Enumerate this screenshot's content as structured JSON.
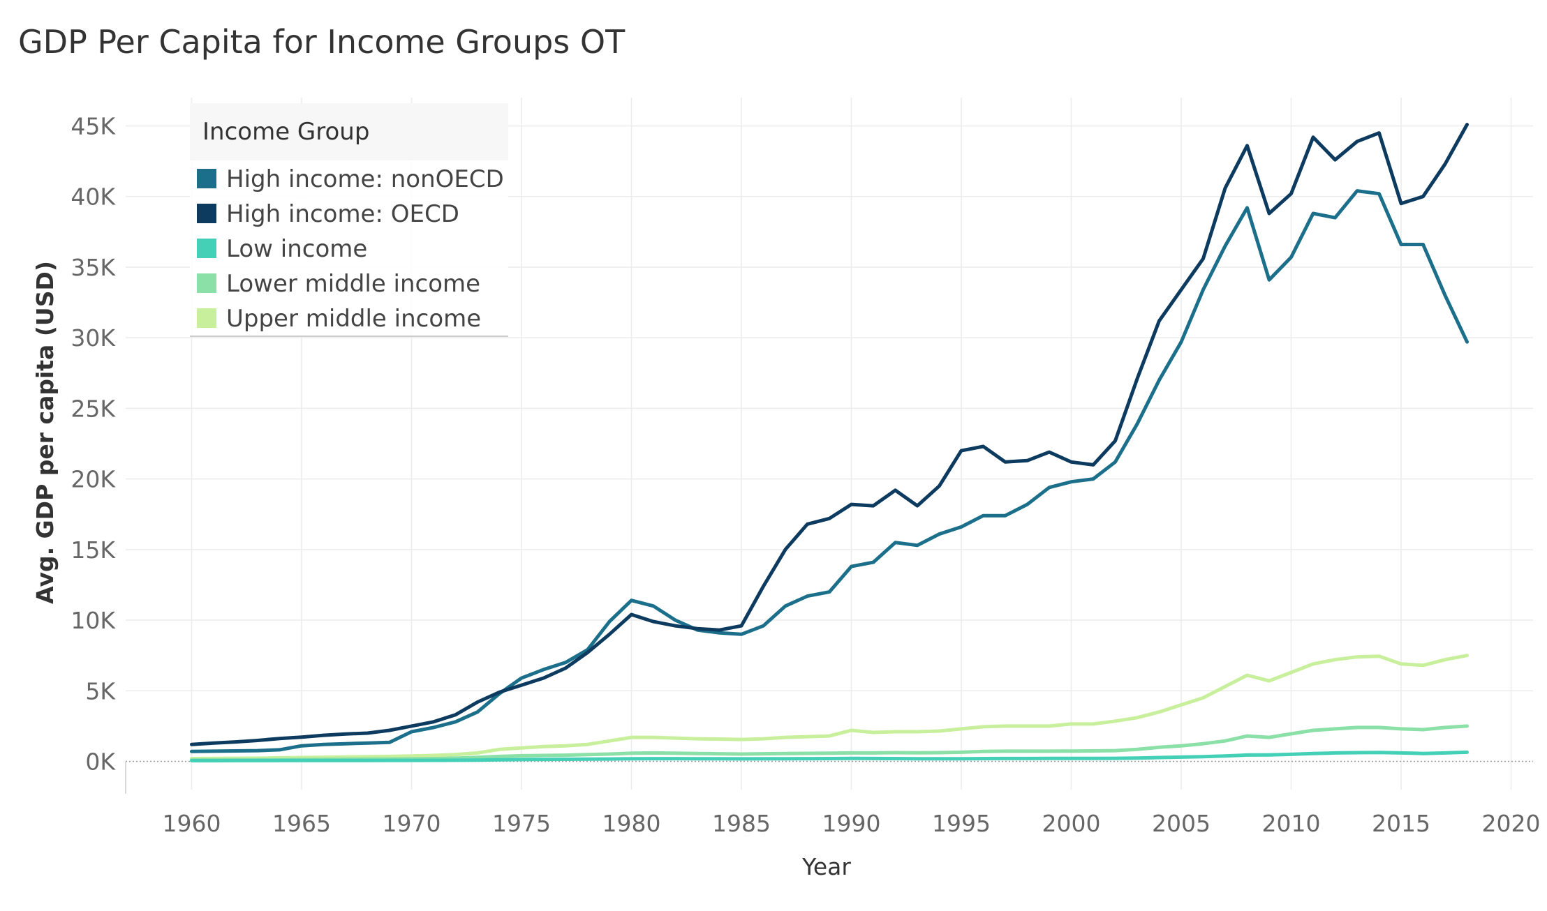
{
  "colors": {
    "High income: nonOECD": "#1b6f8a",
    "High income: OECD": "#0d3a5f",
    "Low income": "#44d0b6",
    "Lower middle income": "#8be0a8",
    "Upper middle income": "#c8f09c"
  },
  "chart_data": {
    "type": "line",
    "title": "GDP Per Capita for Income Groups OT",
    "xlabel": "Year",
    "ylabel": "Avg. GDP per capita (USD)",
    "xlim": [
      1957,
      2021
    ],
    "ylim": [
      -2000,
      47000
    ],
    "x_ticks": [
      1960,
      1965,
      1970,
      1975,
      1980,
      1985,
      1990,
      1995,
      2000,
      2005,
      2010,
      2015,
      2020
    ],
    "x_tick_labels": [
      "1960",
      "1965",
      "1970",
      "1975",
      "1980",
      "1985",
      "1990",
      "1995",
      "2000",
      "2005",
      "2010",
      "2015",
      "2020"
    ],
    "y_ticks": [
      0,
      5000,
      10000,
      15000,
      20000,
      25000,
      30000,
      35000,
      40000,
      45000
    ],
    "y_tick_labels": [
      "0K",
      "5K",
      "10K",
      "15K",
      "20K",
      "25K",
      "30K",
      "35K",
      "40K",
      "45K"
    ],
    "grid": true,
    "legend": {
      "title": "Income Group",
      "placement": "top-left",
      "items": [
        "High income: nonOECD",
        "High income: OECD",
        "Low income",
        "Lower middle income",
        "Upper middle income"
      ]
    },
    "x": [
      1960,
      1961,
      1962,
      1963,
      1964,
      1965,
      1966,
      1967,
      1968,
      1969,
      1970,
      1971,
      1972,
      1973,
      1974,
      1975,
      1976,
      1977,
      1978,
      1979,
      1980,
      1981,
      1982,
      1983,
      1984,
      1985,
      1986,
      1987,
      1988,
      1989,
      1990,
      1991,
      1992,
      1993,
      1994,
      1995,
      1996,
      1997,
      1998,
      1999,
      2000,
      2001,
      2002,
      2003,
      2004,
      2005,
      2006,
      2007,
      2008,
      2009,
      2010,
      2011,
      2012,
      2013,
      2014,
      2015,
      2016,
      2017,
      2018
    ],
    "series": [
      {
        "name": "Upper middle income",
        "values": [
          200,
          210,
          220,
          230,
          250,
          270,
          290,
          310,
          330,
          350,
          380,
          420,
          480,
          600,
          850,
          950,
          1050,
          1100,
          1200,
          1450,
          1700,
          1700,
          1650,
          1600,
          1580,
          1550,
          1600,
          1700,
          1750,
          1800,
          2200,
          2050,
          2100,
          2100,
          2150,
          2300,
          2450,
          2500,
          2500,
          2500,
          2650,
          2650,
          2850,
          3100,
          3500,
          4000,
          4500,
          5300,
          6100,
          5700,
          6300,
          6900,
          7200,
          7400,
          7450,
          6900,
          6800,
          7200,
          7500
        ]
      },
      {
        "name": "Lower middle income",
        "values": [
          100,
          105,
          110,
          115,
          120,
          130,
          140,
          150,
          160,
          170,
          180,
          200,
          230,
          280,
          350,
          400,
          420,
          440,
          480,
          520,
          580,
          600,
          580,
          560,
          540,
          520,
          540,
          560,
          570,
          580,
          600,
          600,
          620,
          610,
          620,
          650,
          700,
          720,
          720,
          720,
          730,
          740,
          760,
          850,
          1000,
          1100,
          1250,
          1450,
          1800,
          1700,
          1950,
          2200,
          2300,
          2400,
          2400,
          2300,
          2250,
          2400,
          2500
        ]
      },
      {
        "name": "Low income",
        "values": [
          50,
          52,
          54,
          56,
          58,
          60,
          62,
          64,
          66,
          68,
          70,
          75,
          80,
          90,
          110,
          130,
          140,
          150,
          160,
          170,
          190,
          195,
          195,
          190,
          185,
          180,
          185,
          190,
          195,
          200,
          210,
          205,
          200,
          190,
          185,
          190,
          200,
          205,
          205,
          210,
          215,
          215,
          220,
          240,
          270,
          300,
          330,
          380,
          450,
          460,
          500,
          560,
          600,
          620,
          630,
          600,
          560,
          600,
          650
        ]
      },
      {
        "name": "High income: nonOECD",
        "values": [
          700,
          720,
          740,
          760,
          820,
          1100,
          1200,
          1250,
          1300,
          1350,
          2100,
          2400,
          2800,
          3500,
          4800,
          5900,
          6500,
          7000,
          7900,
          9900,
          11400,
          11000,
          10000,
          9300,
          9100,
          9000,
          9600,
          11000,
          11700,
          12000,
          13800,
          14100,
          15500,
          15300,
          16100,
          16600,
          17400,
          17400,
          18200,
          19400,
          19800,
          20000,
          21200,
          23900,
          27000,
          29700,
          33400,
          36500,
          39200,
          34100,
          35700,
          38800,
          38500,
          40400,
          40200,
          36600,
          36600,
          33000,
          29700
        ]
      },
      {
        "name": "High income: OECD",
        "values": [
          1200,
          1300,
          1380,
          1480,
          1620,
          1720,
          1850,
          1940,
          2000,
          2200,
          2500,
          2800,
          3300,
          4200,
          4900,
          5400,
          5900,
          6600,
          7700,
          9000,
          10400,
          9900,
          9600,
          9400,
          9300,
          9600,
          12400,
          15000,
          16800,
          17200,
          18200,
          18100,
          19200,
          18100,
          19500,
          22000,
          22300,
          21200,
          21300,
          21900,
          21200,
          21000,
          22700,
          27100,
          31200,
          33400,
          35600,
          40600,
          43600,
          38800,
          40200,
          44200,
          42600,
          43900,
          44500,
          39500,
          40000,
          42300,
          45100
        ]
      }
    ]
  }
}
